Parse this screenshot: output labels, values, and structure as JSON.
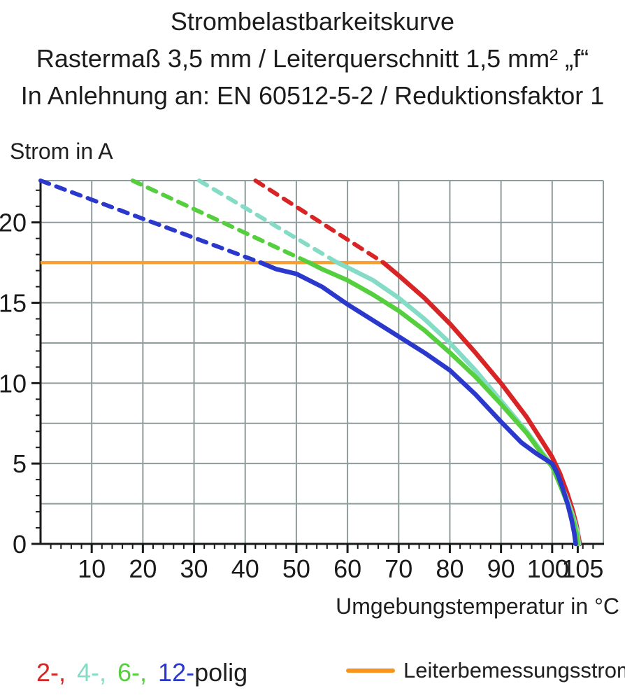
{
  "title": {
    "line1": "Strombelastbarkeitskurve",
    "line2": "Rastermaß 3,5 mm / Leiterquerschnitt 1,5 mm² „f“",
    "line3": "In Anlehnung an: EN 60512-5-2 / Reduktionsfaktor 1"
  },
  "y_axis_title": "Strom in A",
  "x_axis_title": "Umgebungstemperatur in °C",
  "legend": {
    "poles": [
      {
        "label": "2-,",
        "color": "#d92425"
      },
      {
        "label": "4-,",
        "color": "#85dcc6"
      },
      {
        "label": "6-,",
        "color": "#55cf3e"
      },
      {
        "label": "12-",
        "color": "#2b38cc"
      }
    ],
    "suffix": "polig",
    "rated": {
      "label": "Leiterbemessungsstrom",
      "color": "#f7941d"
    }
  },
  "chart_data": {
    "type": "line",
    "title": "Strombelastbarkeitskurve",
    "xlabel": "Umgebungstemperatur in °C",
    "ylabel": "Strom in A",
    "xlim": [
      0,
      110
    ],
    "ylim": [
      0,
      22.6
    ],
    "grid": true,
    "x_gridlines": [
      10,
      20,
      30,
      40,
      50,
      60,
      70,
      80,
      90,
      100,
      110
    ],
    "y_gridlines": [
      2.5,
      5,
      7.5,
      10,
      12.5,
      15,
      17.5,
      20
    ],
    "x_tick_labels": [
      10,
      20,
      30,
      40,
      50,
      60,
      70,
      80,
      90,
      100,
      105
    ],
    "y_tick_labels": [
      0,
      5,
      10,
      15,
      20
    ],
    "x_minor_step": 2,
    "y_minor_step": 1,
    "colors": {
      "grid": "#8f9c9c",
      "axis": "#1a1a1a",
      "background": "#ffffff"
    },
    "rated_current": {
      "label": "Leiterbemessungsstrom",
      "value": 17.5,
      "x_start": 0,
      "x_end": 67,
      "color": "#f7a031"
    },
    "series": [
      {
        "name": "2-polig",
        "color": "#d92425",
        "dashed": [
          [
            42,
            22.6
          ],
          [
            67,
            17.5
          ]
        ],
        "solid": [
          [
            67,
            17.5
          ],
          [
            70,
            16.7
          ],
          [
            75,
            15.3
          ],
          [
            80,
            13.7
          ],
          [
            85,
            11.9
          ],
          [
            90,
            10.0
          ],
          [
            95,
            7.9
          ],
          [
            98,
            6.4
          ],
          [
            100,
            5.4
          ],
          [
            101.5,
            4.4
          ],
          [
            103,
            3.1
          ],
          [
            104,
            2.1
          ],
          [
            104.8,
            1.1
          ],
          [
            105.4,
            0
          ]
        ]
      },
      {
        "name": "4-polig",
        "color": "#85dcc6",
        "dashed": [
          [
            31,
            22.6
          ],
          [
            58,
            17.5
          ]
        ],
        "solid": [
          [
            58,
            17.5
          ],
          [
            60,
            17.2
          ],
          [
            65,
            16.4
          ],
          [
            70,
            15.3
          ],
          [
            75,
            14.0
          ],
          [
            80,
            12.5
          ],
          [
            85,
            10.8
          ],
          [
            90,
            8.9
          ],
          [
            95,
            7.0
          ],
          [
            98,
            5.7
          ],
          [
            100,
            4.9
          ],
          [
            101.5,
            3.9
          ],
          [
            103,
            2.7
          ],
          [
            104,
            1.8
          ],
          [
            104.9,
            0.8
          ],
          [
            105.2,
            0
          ]
        ]
      },
      {
        "name": "6-polig",
        "color": "#55cf3e",
        "dashed": [
          [
            18,
            22.6
          ],
          [
            52.5,
            17.5
          ]
        ],
        "solid": [
          [
            52.5,
            17.5
          ],
          [
            55,
            17.1
          ],
          [
            60,
            16.4
          ],
          [
            65,
            15.5
          ],
          [
            70,
            14.5
          ],
          [
            75,
            13.3
          ],
          [
            80,
            11.9
          ],
          [
            85,
            10.4
          ],
          [
            90,
            8.7
          ],
          [
            95,
            6.9
          ],
          [
            98,
            5.6
          ],
          [
            100,
            4.8
          ],
          [
            101.5,
            3.7
          ],
          [
            103,
            2.5
          ],
          [
            104,
            1.6
          ],
          [
            104.8,
            0.6
          ],
          [
            105,
            0
          ]
        ]
      },
      {
        "name": "12-polig",
        "color": "#2b38cc",
        "dashed": [
          [
            0,
            22.6
          ],
          [
            43,
            17.5
          ]
        ],
        "solid": [
          [
            43,
            17.5
          ],
          [
            46,
            17.1
          ],
          [
            50,
            16.8
          ],
          [
            55,
            16.0
          ],
          [
            60,
            14.9
          ],
          [
            65,
            13.9
          ],
          [
            70,
            12.9
          ],
          [
            75,
            11.9
          ],
          [
            80,
            10.8
          ],
          [
            85,
            9.3
          ],
          [
            90,
            7.6
          ],
          [
            94,
            6.3
          ],
          [
            97,
            5.6
          ],
          [
            100,
            5.0
          ],
          [
            101,
            4.4
          ],
          [
            102,
            3.5
          ],
          [
            103,
            2.5
          ],
          [
            103.8,
            1.5
          ],
          [
            104.3,
            0.7
          ],
          [
            104.6,
            0
          ]
        ]
      }
    ]
  }
}
